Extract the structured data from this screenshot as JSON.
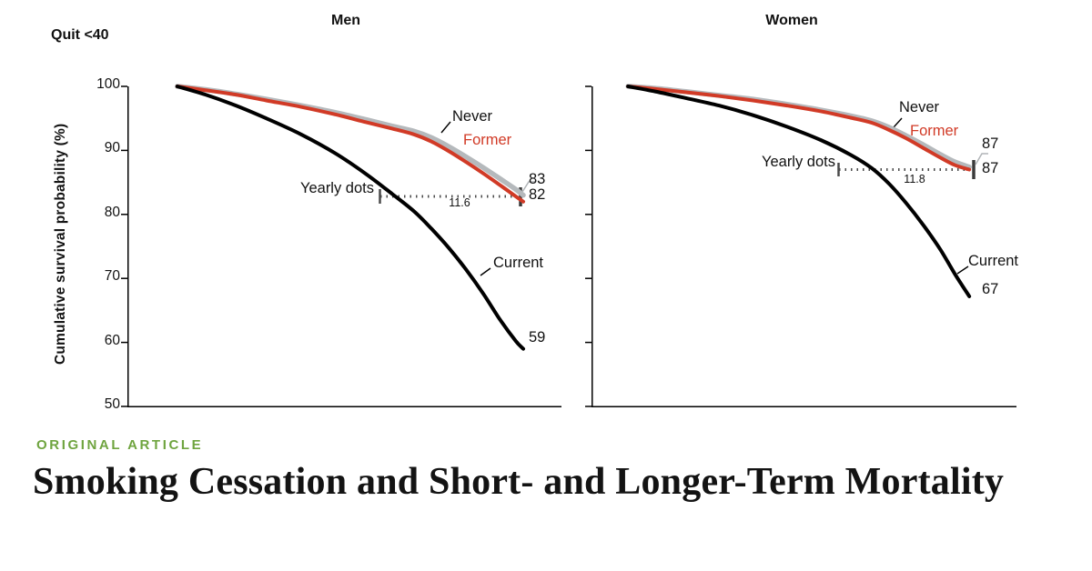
{
  "page": {
    "quit_label": "Quit <40",
    "eyebrow": "ORIGINAL ARTICLE",
    "title": "Smoking Cessation and Short- and Longer-Term Mortality",
    "accent_green": "#6fa43f"
  },
  "chart_data": [
    {
      "type": "line",
      "title": "Men",
      "xlabel": "",
      "ylabel": "Cumulative survival probability (%)",
      "ylim": [
        50,
        100
      ],
      "yticks": [
        100,
        90,
        80,
        70,
        60,
        50
      ],
      "grid": false,
      "legend_position": "inline-labels",
      "series": [
        {
          "name": "Never",
          "color": "#b5b9bc",
          "width": 5.5,
          "end_value": "83",
          "x": [
            0.115,
            0.18,
            0.25,
            0.32,
            0.4,
            0.48,
            0.55,
            0.61,
            0.66,
            0.7,
            0.74,
            0.78,
            0.82,
            0.86,
            0.895,
            0.912
          ],
          "y": [
            100,
            99.5,
            98.8,
            98.0,
            97.0,
            95.9,
            94.8,
            93.8,
            93.0,
            92.0,
            90.6,
            89.0,
            87.3,
            85.5,
            83.9,
            83.0
          ]
        },
        {
          "name": "Former",
          "color": "#d13a26",
          "width": 4,
          "end_value": "82",
          "x": [
            0.115,
            0.18,
            0.25,
            0.32,
            0.4,
            0.48,
            0.55,
            0.61,
            0.66,
            0.7,
            0.74,
            0.78,
            0.82,
            0.86,
            0.895,
            0.912
          ],
          "y": [
            100,
            99.4,
            98.7,
            97.8,
            96.8,
            95.6,
            94.4,
            93.4,
            92.5,
            91.4,
            89.9,
            88.2,
            86.4,
            84.5,
            82.8,
            82.0
          ]
        },
        {
          "name": "Current",
          "color": "#000000",
          "width": 4,
          "end_value": "59",
          "x": [
            0.115,
            0.18,
            0.25,
            0.32,
            0.4,
            0.48,
            0.55,
            0.61,
            0.66,
            0.7,
            0.74,
            0.78,
            0.82,
            0.86,
            0.895,
            0.912
          ],
          "y": [
            100,
            98.7,
            97.0,
            95.0,
            92.5,
            89.5,
            86.3,
            83.2,
            80.5,
            77.8,
            74.8,
            71.4,
            67.6,
            63.4,
            60.2,
            59.0
          ]
        }
      ],
      "annotations": {
        "yearly_dots": "Yearly dots",
        "gap_years": "11.6"
      }
    },
    {
      "type": "line",
      "title": "Women",
      "xlabel": "",
      "ylabel": "Cumulative survival probability (%)",
      "ylim": [
        50,
        100
      ],
      "yticks": [
        100,
        90,
        80,
        70,
        60,
        50
      ],
      "grid": false,
      "legend_position": "inline-labels",
      "series": [
        {
          "name": "Never",
          "color": "#b5b9bc",
          "width": 5.5,
          "end_value": "87",
          "x": [
            0.086,
            0.15,
            0.22,
            0.3,
            0.38,
            0.46,
            0.54,
            0.61,
            0.66,
            0.7,
            0.74,
            0.78,
            0.82,
            0.855,
            0.889
          ],
          "y": [
            100,
            99.7,
            99.2,
            98.6,
            98.0,
            97.2,
            96.3,
            95.4,
            94.6,
            93.6,
            92.3,
            90.9,
            89.4,
            88.2,
            87.4
          ]
        },
        {
          "name": "Former",
          "color": "#d13a26",
          "width": 4,
          "end_value": "87",
          "x": [
            0.086,
            0.15,
            0.22,
            0.3,
            0.38,
            0.46,
            0.54,
            0.61,
            0.66,
            0.7,
            0.74,
            0.78,
            0.82,
            0.855,
            0.889
          ],
          "y": [
            100,
            99.6,
            99.1,
            98.5,
            97.8,
            97.0,
            96.1,
            95.1,
            94.3,
            93.2,
            91.9,
            90.4,
            88.9,
            87.7,
            87.0
          ]
        },
        {
          "name": "Current",
          "color": "#000000",
          "width": 4,
          "end_value": "67",
          "x": [
            0.086,
            0.15,
            0.22,
            0.3,
            0.38,
            0.46,
            0.54,
            0.61,
            0.66,
            0.7,
            0.74,
            0.78,
            0.82,
            0.855,
            0.889
          ],
          "y": [
            100,
            99.2,
            98.2,
            97.0,
            95.5,
            93.7,
            91.6,
            89.3,
            87.2,
            84.8,
            81.8,
            78.4,
            74.6,
            70.7,
            67.2
          ]
        }
      ],
      "annotations": {
        "yearly_dots": "Yearly dots",
        "gap_years": "11.8"
      }
    }
  ]
}
